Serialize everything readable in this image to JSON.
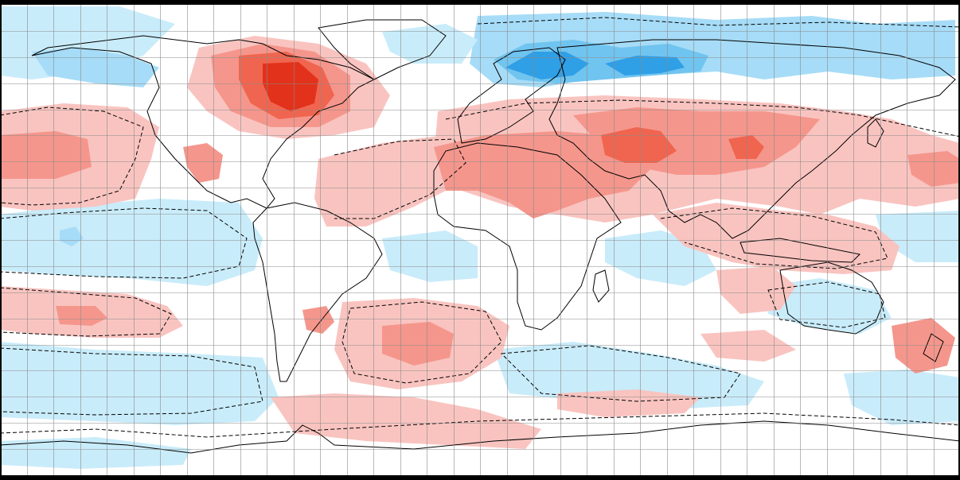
{
  "map": {
    "colors": {
      "background": "#ffffff",
      "frame": "#000000",
      "grid": "#8a8a8a",
      "coastline": "#000000",
      "contour_dashed": "#000000",
      "warm_light": "#f9c4c0",
      "warm_medium": "#f5968c",
      "warm_strong": "#f0654f",
      "warm_intense": "#e2321b",
      "cool_light": "#c9ecfa",
      "cool_medium": "#a6dcf7",
      "cool_strong": "#70c4f0",
      "cool_intense": "#2f9fe6"
    },
    "graticule": {
      "meridian_count": 36,
      "parallel_count": 18
    },
    "anomaly_regions": [
      {
        "name": "canada-hudson-warm",
        "level": "warm_intense"
      },
      {
        "name": "central-asia-warm",
        "level": "warm_strong"
      },
      {
        "name": "tibet-warm",
        "level": "warm_strong"
      },
      {
        "name": "north-africa-arabia-warm",
        "level": "warm_medium"
      },
      {
        "name": "south-atlantic-warm",
        "level": "warm_medium"
      },
      {
        "name": "north-pacific-warm",
        "level": "warm_medium"
      },
      {
        "name": "scandinavia-russia-cool",
        "level": "cool_intense"
      },
      {
        "name": "arctic-cool",
        "level": "cool_medium"
      },
      {
        "name": "tropical-pacific-cool",
        "level": "cool_light"
      },
      {
        "name": "southern-ocean-cool",
        "level": "cool_light"
      }
    ]
  }
}
